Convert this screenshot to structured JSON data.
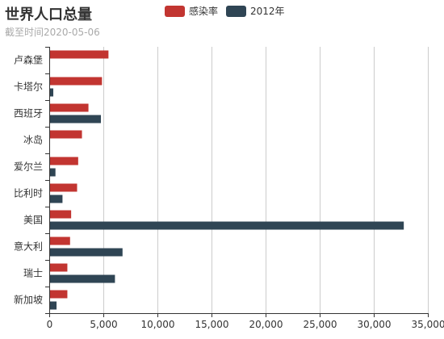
{
  "chart_data": {
    "type": "bar",
    "orientation": "horizontal",
    "title": "世界人口总量",
    "subtitle": "截至时间2020-05-06",
    "categories": [
      "卢森堡",
      "卡塔尔",
      "西班牙",
      "冰岛",
      "爱尔兰",
      "比利时",
      "美国",
      "意大利",
      "瑞士",
      "新加坡"
    ],
    "series": [
      {
        "name": "感染率",
        "color": "#c23531",
        "values": [
          5400,
          4800,
          3550,
          2950,
          2600,
          2500,
          1950,
          1850,
          1600,
          1600
        ]
      },
      {
        "name": "2012年",
        "color": "#2f4554",
        "values": [
          0,
          300,
          4700,
          0,
          500,
          1150,
          32700,
          6700,
          6000,
          600
        ]
      }
    ],
    "xlim": [
      0,
      35000
    ],
    "xticks": [
      0,
      5000,
      10000,
      15000,
      20000,
      25000,
      30000,
      35000
    ],
    "xtick_labels": [
      "0",
      "5,000",
      "10,000",
      "15,000",
      "20,000",
      "25,000",
      "30,000",
      "35,000"
    ],
    "grid": true,
    "legend_position": "top-center"
  }
}
